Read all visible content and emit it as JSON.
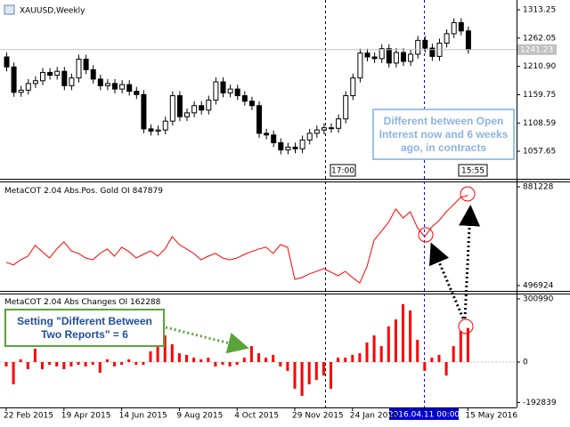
{
  "chart_data": [
    {
      "type": "candlestick",
      "title": "XAUUSD,Weekly",
      "open": [
        1228,
        1210,
        1164,
        1168,
        1180,
        1185,
        1200,
        1195,
        1202,
        1176,
        1190,
        1224,
        1205,
        1188,
        1176,
        1180,
        1170,
        1178,
        1166,
        1160,
        1098,
        1094,
        1096,
        1112,
        1158,
        1120,
        1127,
        1140,
        1132,
        1150,
        1183,
        1163,
        1170,
        1158,
        1148,
        1140,
        1090,
        1087,
        1073,
        1060,
        1065,
        1062,
        1078,
        1090,
        1096,
        1100,
        1099,
        1116,
        1158,
        1190,
        1235,
        1228,
        1225,
        1243,
        1217,
        1236,
        1220,
        1233,
        1258,
        1244,
        1229,
        1253,
        1270,
        1290,
        1275
      ],
      "high": [
        1236,
        1218,
        1176,
        1188,
        1193,
        1208,
        1208,
        1210,
        1210,
        1198,
        1232,
        1232,
        1213,
        1196,
        1188,
        1188,
        1186,
        1186,
        1174,
        1168,
        1106,
        1104,
        1120,
        1166,
        1166,
        1135,
        1148,
        1148,
        1158,
        1191,
        1191,
        1178,
        1178,
        1166,
        1156,
        1148,
        1098,
        1095,
        1081,
        1073,
        1073,
        1086,
        1098,
        1104,
        1108,
        1108,
        1124,
        1166,
        1198,
        1243,
        1243,
        1236,
        1251,
        1251,
        1244,
        1244,
        1241,
        1266,
        1266,
        1252,
        1261,
        1278,
        1298,
        1298,
        1283
      ],
      "low": [
        1202,
        1156,
        1156,
        1160,
        1172,
        1177,
        1187,
        1187,
        1168,
        1168,
        1182,
        1197,
        1180,
        1168,
        1168,
        1162,
        1162,
        1158,
        1152,
        1090,
        1086,
        1086,
        1088,
        1104,
        1112,
        1112,
        1119,
        1124,
        1124,
        1142,
        1155,
        1155,
        1150,
        1140,
        1132,
        1082,
        1079,
        1065,
        1052,
        1052,
        1054,
        1054,
        1070,
        1082,
        1088,
        1091,
        1091,
        1108,
        1150,
        1182,
        1220,
        1217,
        1217,
        1209,
        1209,
        1212,
        1212,
        1225,
        1236,
        1221,
        1221,
        1245,
        1262,
        1267,
        1234
      ],
      "close": [
        1210,
        1164,
        1168,
        1180,
        1185,
        1200,
        1195,
        1202,
        1176,
        1190,
        1224,
        1205,
        1188,
        1176,
        1180,
        1170,
        1178,
        1166,
        1160,
        1098,
        1094,
        1096,
        1112,
        1158,
        1120,
        1127,
        1140,
        1132,
        1150,
        1183,
        1163,
        1170,
        1158,
        1148,
        1140,
        1090,
        1087,
        1073,
        1060,
        1065,
        1062,
        1078,
        1090,
        1096,
        1100,
        1099,
        1116,
        1158,
        1190,
        1235,
        1228,
        1225,
        1243,
        1217,
        1236,
        1220,
        1233,
        1258,
        1244,
        1229,
        1253,
        1270,
        1290,
        1275,
        1241.23
      ],
      "ylim": [
        1009.4,
        1327.7
      ],
      "yticks": [
        1313.25,
        1262.05,
        {
          "value": 1210.9,
          "label": "1210.90"
        },
        1159.75,
        1108.59,
        1057.65
      ],
      "time_labels": [
        "17:00",
        "15:55"
      ],
      "annotation": "Different between Open Interest now and 6 weeks ago, in contracts"
    },
    {
      "type": "line",
      "title": "MetaCOT 2.04 Abs.Pos. Gold OI",
      "color": "#ff0000",
      "values": [
        587000,
        577000,
        597000,
        611000,
        653000,
        629000,
        604000,
        639000,
        667000,
        632000,
        622000,
        604000,
        597000,
        622000,
        639000,
        611000,
        646000,
        629000,
        604000,
        618000,
        632000,
        611000,
        639000,
        687000,
        656000,
        639000,
        622000,
        597000,
        611000,
        622000,
        604000,
        597000,
        604000,
        618000,
        629000,
        639000,
        646000,
        622000,
        656000,
        646000,
        521000,
        528000,
        542000,
        552000,
        563000,
        549000,
        535000,
        552000,
        528000,
        507000,
        570000,
        674000,
        708000,
        743000,
        795000,
        760000,
        784000,
        722000,
        687000,
        725000,
        750000,
        784000,
        812000,
        840000,
        847879
      ],
      "ylim": [
        476000,
        898500
      ],
      "yticks": [
        881228,
        496924
      ]
    },
    {
      "type": "bar",
      "title": "MetaCOT 2.04 Abs Changes  OI",
      "color": "#ff0000",
      "categories": [
        "22 Feb 2015",
        null,
        null,
        null,
        null,
        null,
        null,
        null,
        "19 Apr 2015",
        null,
        null,
        null,
        null,
        null,
        null,
        null,
        "14 Jun 2015",
        null,
        null,
        null,
        null,
        null,
        null,
        null,
        "9 Aug 2015",
        null,
        null,
        null,
        null,
        null,
        null,
        null,
        "4 Oct 2015",
        null,
        null,
        null,
        null,
        null,
        null,
        null,
        "29 Nov 2015",
        null,
        null,
        null,
        null,
        null,
        null,
        null,
        "24 Jan 2016",
        null,
        null,
        null,
        null,
        null,
        null,
        null,
        null,
        null,
        null,
        null,
        null,
        null,
        null,
        null,
        "15 May 2016"
      ],
      "values": [
        -21000,
        -106000,
        13000,
        -34000,
        64000,
        -34000,
        -13000,
        -21000,
        -34000,
        -21000,
        -13000,
        -21000,
        -13000,
        -51000,
        13000,
        -21000,
        -13000,
        13000,
        -13000,
        -13000,
        51000,
        76000,
        127000,
        85000,
        42000,
        34000,
        21000,
        13000,
        21000,
        -21000,
        -13000,
        -21000,
        -13000,
        21000,
        76000,
        42000,
        21000,
        34000,
        -21000,
        -42000,
        -127000,
        -161000,
        -106000,
        -85000,
        -64000,
        -127000,
        21000,
        21000,
        34000,
        42000,
        93000,
        127000,
        76000,
        170000,
        203000,
        276000,
        246000,
        106000,
        -42000,
        21000,
        34000,
        -64000,
        76000,
        148000,
        162288
      ],
      "ylim": [
        -216000,
        322000
      ],
      "yticks": [
        300990,
        0,
        -192839
      ],
      "crosshair_label": "2016.04.11 00:00",
      "annotation": "Setting \"Different Between Two Reports\" = 6"
    }
  ]
}
